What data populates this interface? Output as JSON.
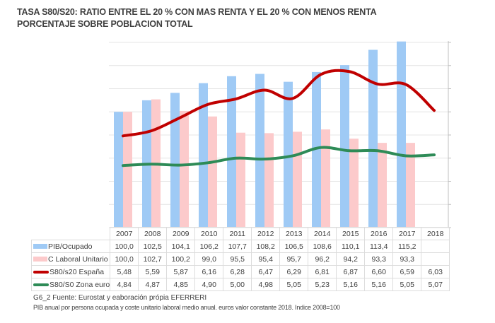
{
  "title_line1": "TASA S80/S20: RATIO ENTRE EL 20 % CON MAS RENTA Y EL 20 % CON MENOS RENTA",
  "title_line2": "PORCENTAJE SOBRE POBLACION TOTAL",
  "footnote_source": "G6_2  Fuente:  Eurostat y eaboración própia  EFERRERI",
  "footnote_note": "PIB anual por persona ocupada y coste unitario laboral medio anual. euros valor constante 2018. Indice 2008=100",
  "colors": {
    "pib": "#9fcaf5",
    "claboral": "#fccacb",
    "s80_espana": "#c00000",
    "s80_euro": "#2e8b57",
    "grid": "#e4e4e4"
  },
  "chart_data": {
    "type": "bar",
    "title": "TASA S80/S20: RATIO ENTRE EL 20 % CON MAS RENTA Y EL 20 % CON MENOS RENTA / PORCENTAJE SOBRE POBLACION TOTAL",
    "categories": [
      "2007",
      "2008",
      "2009",
      "2010",
      "2011",
      "2012",
      "2013",
      "2014",
      "2015",
      "2016",
      "2017",
      "2018"
    ],
    "series": [
      {
        "name": "PIB/Ocupado",
        "type": "bar",
        "axis": "left",
        "color": "#9fcaf5",
        "values": [
          100.0,
          102.5,
          104.1,
          106.2,
          107.7,
          108.2,
          106.5,
          108.6,
          110.1,
          113.4,
          115.2,
          null
        ],
        "labels": [
          "100,0",
          "102,5",
          "104,1",
          "106,2",
          "107,7",
          "108,2",
          "106,5",
          "108,6",
          "110,1",
          "113,4",
          "115,2",
          ""
        ]
      },
      {
        "name": "C Laboral Unitario",
        "type": "bar",
        "axis": "left",
        "color": "#fccacb",
        "values": [
          100.0,
          102.7,
          100.2,
          99.0,
          95.5,
          95.4,
          95.7,
          96.2,
          94.2,
          93.3,
          93.3,
          null
        ],
        "labels": [
          "100,0",
          "102,7",
          "100,2",
          "99,0",
          "95,5",
          "95,4",
          "95,7",
          "96,2",
          "94,2",
          "93,3",
          "93,3",
          ""
        ]
      },
      {
        "name": "S80/s20 España",
        "type": "line",
        "axis": "right",
        "color": "#c00000",
        "values": [
          5.48,
          5.59,
          5.87,
          6.16,
          6.28,
          6.47,
          6.29,
          6.81,
          6.87,
          6.6,
          6.59,
          6.03
        ],
        "labels": [
          "5,48",
          "5,59",
          "5,87",
          "6,16",
          "6,28",
          "6,47",
          "6,29",
          "6,81",
          "6,87",
          "6,60",
          "6,59",
          "6,03"
        ]
      },
      {
        "name": "S80/S0 Zona euro",
        "type": "line",
        "axis": "right",
        "color": "#2e8b57",
        "values": [
          4.84,
          4.87,
          4.85,
          4.9,
          5.0,
          4.98,
          5.05,
          5.23,
          5.16,
          5.16,
          5.05,
          5.07
        ],
        "labels": [
          "4,84",
          "4,87",
          "4,85",
          "4,90",
          "5,00",
          "4,98",
          "5,05",
          "5,23",
          "5,16",
          "5,16",
          "5,05",
          "5,07"
        ]
      }
    ],
    "ylim_left": [
      75,
      115
    ],
    "ylim_right": [
      3.5,
      7.5
    ],
    "gridlines": 8,
    "grid": true,
    "legend": "data-table-below",
    "xlabel": "",
    "ylabel": ""
  }
}
